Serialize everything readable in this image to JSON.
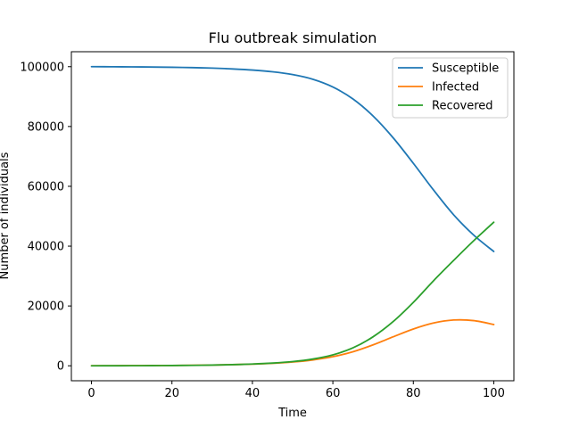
{
  "chart_data": {
    "type": "line",
    "title": "Flu outbreak simulation",
    "xlabel": "Time",
    "ylabel": "Number of individuals",
    "xlim": [
      -5,
      105
    ],
    "ylim": [
      -5000,
      105000
    ],
    "xticks": [
      0,
      20,
      40,
      60,
      80,
      100
    ],
    "yticks": [
      0,
      20000,
      40000,
      60000,
      80000,
      100000
    ],
    "grid": false,
    "legend": "top-right",
    "x": [
      0,
      5,
      10,
      15,
      20,
      25,
      30,
      35,
      40,
      45,
      50,
      55,
      60,
      65,
      70,
      75,
      80,
      85,
      90,
      95,
      100
    ],
    "series": [
      {
        "name": "Susceptible",
        "color": "#1f77b4",
        "values": [
          100000,
          99970,
          99930,
          99880,
          99800,
          99690,
          99520,
          99250,
          98870,
          98280,
          97350,
          95800,
          93200,
          89200,
          83500,
          76200,
          67700,
          58800,
          50500,
          43700,
          38200
        ]
      },
      {
        "name": "Infected",
        "color": "#ff7f0e",
        "values": [
          20,
          35,
          55,
          80,
          115,
          170,
          250,
          380,
          560,
          820,
          1250,
          1950,
          3050,
          4700,
          7000,
          9700,
          12300,
          14300,
          15300,
          15100,
          13800
        ]
      },
      {
        "name": "Recovered",
        "color": "#2ca02c",
        "values": [
          0,
          10,
          25,
          50,
          90,
          150,
          240,
          380,
          580,
          900,
          1400,
          2250,
          3650,
          6000,
          9700,
          14800,
          21200,
          28400,
          35200,
          41800,
          48000
        ]
      }
    ]
  }
}
